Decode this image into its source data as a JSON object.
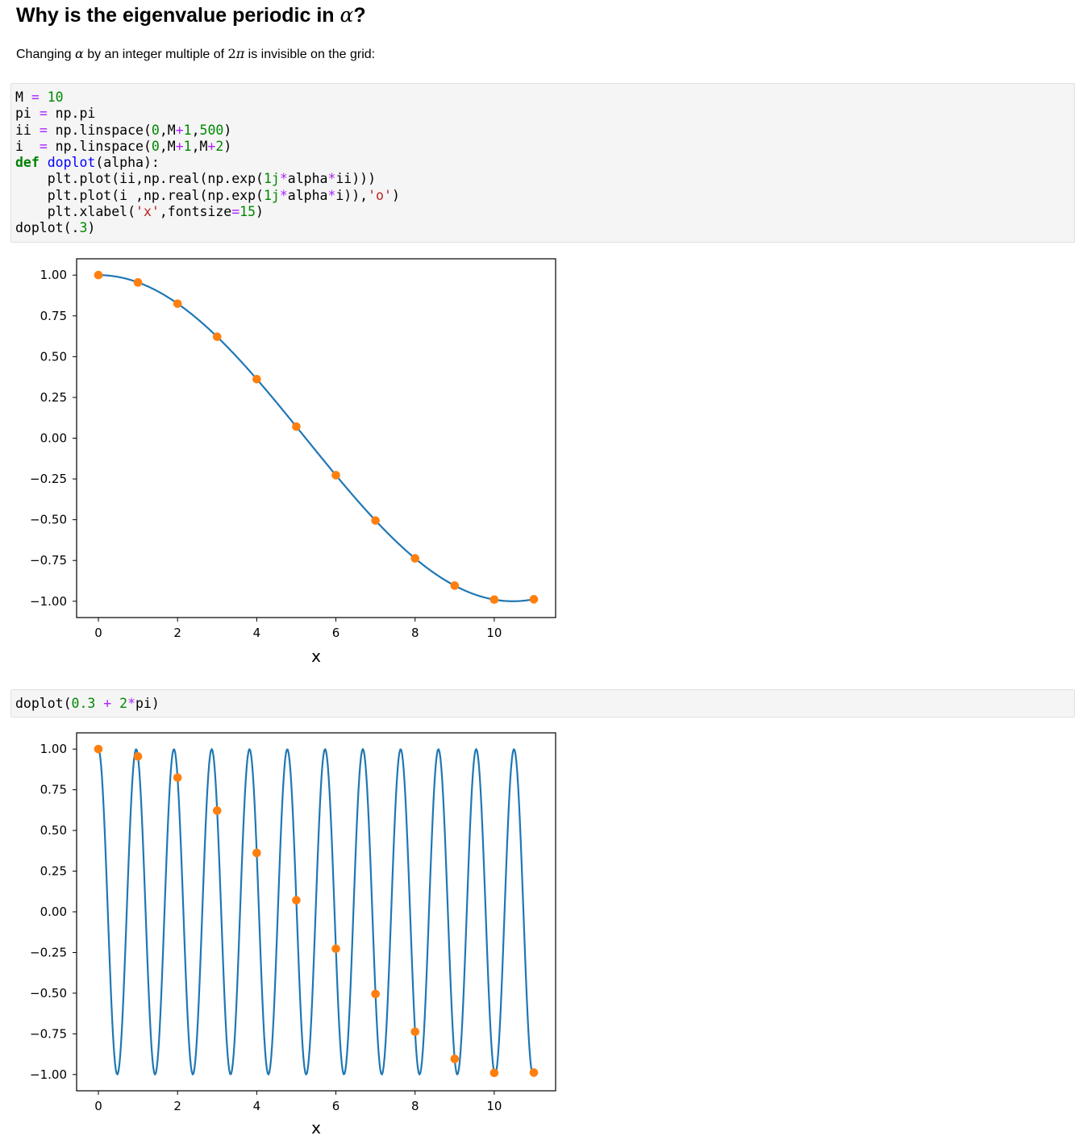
{
  "heading": {
    "text": "Why is the eigenvalue periodic in ",
    "symbol": "α",
    "suffix": "?"
  },
  "intro": {
    "pre": "Changing ",
    "alpha": "α",
    "mid": " by an integer multiple of ",
    "two": "2",
    "pi": "π",
    "post": " is invisible on the grid:"
  },
  "code_cell_1": {
    "lines": [
      "M = 10",
      "pi = np.pi",
      "ii = np.linspace(0,M+1,500)",
      "i  = np.linspace(0,M+1,M+2)",
      "def doplot(alpha):",
      "    plt.plot(ii,np.real(np.exp(1j*alpha*ii)))",
      "    plt.plot(i ,np.real(np.exp(1j*alpha*i)),'o')",
      "    plt.xlabel('x',fontsize=15)",
      "doplot(.3)"
    ]
  },
  "code_cell_2": {
    "lines": [
      "doplot(0.3 + 2*pi)"
    ]
  },
  "chart_data": [
    {
      "type": "line",
      "xlabel": "x",
      "ylabel": "",
      "xlim": [
        -0.55,
        11.55
      ],
      "ylim": [
        -1.1,
        1.1
      ],
      "xticks": [
        0,
        2,
        4,
        6,
        8,
        10
      ],
      "xtick_labels": [
        "0",
        "2",
        "4",
        "6",
        "8",
        "10"
      ],
      "yticks": [
        1.0,
        0.75,
        0.5,
        0.25,
        0.0,
        -0.25,
        -0.5,
        -0.75,
        -1.0
      ],
      "ytick_labels": [
        "1.00",
        "0.75",
        "0.50",
        "0.25",
        "0.00",
        "−0.25",
        "−0.50",
        "−0.75",
        "−1.00"
      ],
      "grid": false,
      "alpha": 0.3,
      "series": [
        {
          "style": "line",
          "color": "#1f77b4",
          "x_range": [
            0,
            11
          ],
          "n": 500,
          "formula": "cos(alpha*x)"
        },
        {
          "style": "markers",
          "color": "#ff7f0e",
          "x": [
            0,
            1,
            2,
            3,
            4,
            5,
            6,
            7,
            8,
            9,
            10,
            11
          ],
          "y": [
            1.0,
            0.955,
            0.825,
            0.622,
            0.362,
            0.071,
            -0.227,
            -0.505,
            -0.737,
            -0.904,
            -0.99,
            -0.988
          ]
        }
      ]
    },
    {
      "type": "line",
      "xlabel": "x",
      "ylabel": "",
      "xlim": [
        -0.55,
        11.55
      ],
      "ylim": [
        -1.1,
        1.1
      ],
      "xticks": [
        0,
        2,
        4,
        6,
        8,
        10
      ],
      "xtick_labels": [
        "0",
        "2",
        "4",
        "6",
        "8",
        "10"
      ],
      "yticks": [
        1.0,
        0.75,
        0.5,
        0.25,
        0.0,
        -0.25,
        -0.5,
        -0.75,
        -1.0
      ],
      "ytick_labels": [
        "1.00",
        "0.75",
        "0.50",
        "0.25",
        "0.00",
        "−0.25",
        "−0.50",
        "−0.75",
        "−1.00"
      ],
      "grid": false,
      "alpha": 6.583185307179586,
      "series": [
        {
          "style": "line",
          "color": "#1f77b4",
          "x_range": [
            0,
            11
          ],
          "n": 500,
          "formula": "cos(alpha*x)"
        },
        {
          "style": "markers",
          "color": "#ff7f0e",
          "x": [
            0,
            1,
            2,
            3,
            4,
            5,
            6,
            7,
            8,
            9,
            10,
            11
          ],
          "y": [
            1.0,
            0.955,
            0.825,
            0.622,
            0.362,
            0.071,
            -0.227,
            -0.505,
            -0.737,
            -0.904,
            -0.99,
            -0.988
          ]
        }
      ]
    }
  ]
}
